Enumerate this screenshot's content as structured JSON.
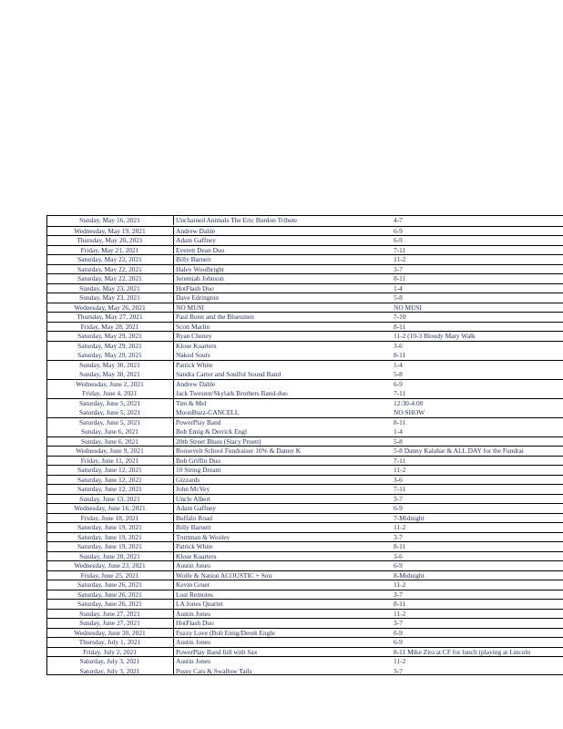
{
  "schedule": [
    {
      "date": "Sunday, May 16, 2021",
      "act": "Unchained Animals The Eric Burdon Tribute",
      "time": "4-7"
    },
    {
      "date": "Wednesday, May 19, 2021",
      "act": "Andrew Dahle",
      "time": "6-9"
    },
    {
      "date": "Thursday, May 20, 2021",
      "act": "Adam Gaffney",
      "time": "6-9"
    },
    {
      "date": "Friday, May 21, 2021",
      "act": "Everett Dean Duo",
      "time": "7-11"
    },
    {
      "date": "Saturday, May 22, 2021",
      "act": "Billy Barnett",
      "time": "11-2"
    },
    {
      "date": "Saturday, May 22, 2021",
      "act": "Haley Woolbright",
      "time": "3-7"
    },
    {
      "date": "Saturday, May 22, 2021",
      "act": "Jeremiah Johnson",
      "time": "8-11"
    },
    {
      "date": "Sunday, May 23, 2021",
      "act": "HotFlash Duo",
      "time": "1-4"
    },
    {
      "date": "Sunday, May 23, 2021",
      "act": "Dave Edrington",
      "time": "5-8"
    },
    {
      "date": "Wednesday, May 26, 2021",
      "act": "NO MUSI",
      "time": "NO MUSI"
    },
    {
      "date": "Thursday, May 27, 2021",
      "act": "Paul Bonn and the Bluesmen",
      "time": "7-10"
    },
    {
      "date": "Friday, May 28, 2021",
      "act": "Scott Marlin",
      "time": "8-11"
    },
    {
      "date": "Saturday, May 29, 2021",
      "act": "Ryan Cheney",
      "time": "11-2 (10-3 Bloody Mary Walk"
    },
    {
      "date": "Saturday, May 29, 2021",
      "act": "Klose Kuarters",
      "time": "3-6"
    },
    {
      "date": "Saturday, May 29, 2021",
      "act": "Naked Souls",
      "time": "8-11"
    },
    {
      "date": "Sunday, May 30, 2021",
      "act": "Patrick White",
      "time": "1-4"
    },
    {
      "date": "Sunday, May 30, 2021",
      "act": "Sandra Carter and Soulful Sound Band",
      "time": "5-8"
    },
    {
      "date": "Wednesday, June 2, 2021",
      "act": "Andrew Dahle",
      "time": "6-9"
    },
    {
      "date": "Friday, June 4, 2021",
      "act": "Jack Twesten/Skylark Brothers Band-duo",
      "time": "7-11"
    },
    {
      "date": "Saturday, June 5, 2021",
      "act": "Tim & Mel",
      "time": "12:30-4:00"
    },
    {
      "date": "Saturday, June 5, 2021",
      "act": "MoonBuzz-CANCELL",
      "time": "NO SHOW"
    },
    {
      "date": "Saturday, June 5, 2021",
      "act": "PowerPlay Band",
      "time": "8-11"
    },
    {
      "date": "Sunday, June 6, 2021",
      "act": "Bob Emig & Derrick Engl",
      "time": "1-4"
    },
    {
      "date": "Sunday, June 6, 2021",
      "act": "20th Street Blues (Stacy Pruett)",
      "time": "5-8"
    },
    {
      "date": "Wednesday, June 9, 2021",
      "act": "Roosevelt School Fundraiser 10%  & Danny K",
      "time": "5-8 Danny Kalahar & ALL DAY for the Fundrai"
    },
    {
      "date": "Friday, June 11, 2021",
      "act": "Bob Griffin Duo",
      "time": "7-11"
    },
    {
      "date": "Saturday, June 12, 2021",
      "act": "10 String Dream",
      "time": "11-2"
    },
    {
      "date": "Saturday, June 12, 2021",
      "act": "Gizzards",
      "time": "3-6"
    },
    {
      "date": "Saturday, June 12, 2021",
      "act": "John McVey",
      "time": "7-11"
    },
    {
      "date": "Sunday, June 13, 2021",
      "act": "Uncle Albert",
      "time": "3-7"
    },
    {
      "date": "Wednesday, June 16, 2021",
      "act": "Adam Gaffney",
      "time": "6-9"
    },
    {
      "date": "Friday, June 18, 2021",
      "act": "Buffalo Road",
      "time": "7-Midnight"
    },
    {
      "date": "Saturday, June 19, 2021",
      "act": "Billy Barnett",
      "time": "11-2"
    },
    {
      "date": "Saturday, June 19, 2021",
      "act": "Truttman & Wooley",
      "time": "3-7"
    },
    {
      "date": "Saturday, June 19, 2021",
      "act": "Patrick White",
      "time": "8-11"
    },
    {
      "date": "Sunday, June 20, 2021",
      "act": "Klose Kuarters",
      "time": "3-6"
    },
    {
      "date": "Wednesday, June 23, 2021",
      "act": "Austin Jones",
      "time": "6-9"
    },
    {
      "date": "Friday, June 25, 2021",
      "act": "Wolfe & Nation ACOUSTIC + Sou",
      "time": "8-Midnight"
    },
    {
      "date": "Saturday, June 26, 2021",
      "act": "Kevin Gruer",
      "time": "11-2"
    },
    {
      "date": "Saturday, June 26, 2021",
      "act": "Lost Remotes",
      "time": "3-7"
    },
    {
      "date": "Saturday, June 26, 2021",
      "act": "LA Jones Quartet",
      "time": "8-11"
    },
    {
      "date": "Sunday, June 27, 2021",
      "act": "Austin Jones",
      "time": "11-2"
    },
    {
      "date": "Sunday, June 27, 2021",
      "act": "HotFlash Duo",
      "time": "3-7"
    },
    {
      "date": "Wednesday, June 30, 2021",
      "act": "Fuzzy Love (Bob Emig/Derek Engle",
      "time": "6-9"
    },
    {
      "date": "Thursday, July 1, 2021",
      "act": "Austin Jones",
      "time": "6-9"
    },
    {
      "date": "Friday, July 2, 2021",
      "act": "PowerPlay Band full with Sax",
      "time": "8-11 Mike Zito at CF for lunch (playing at Lincoln"
    },
    {
      "date": "Saturday, July 3, 2021",
      "act": "Austin Jones",
      "time": "11-2"
    },
    {
      "date": "Saturday, July 3, 2021",
      "act": "Pussy Cats & Swallow Tails",
      "time": "3-7"
    }
  ]
}
